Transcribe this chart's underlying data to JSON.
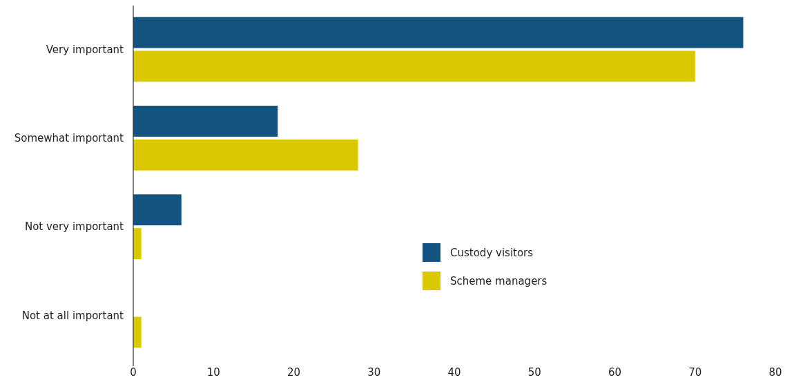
{
  "chart_data": {
    "type": "bar",
    "orientation": "horizontal",
    "categories": [
      "Very important",
      "Somewhat important",
      "Not very important",
      "Not at all important"
    ],
    "series": [
      {
        "name": "Custody visitors",
        "color": "#14527f",
        "values": [
          76,
          18,
          6,
          0
        ]
      },
      {
        "name": "Scheme managers",
        "color": "#dac800",
        "values": [
          70,
          28,
          1,
          1
        ]
      }
    ],
    "xlim": [
      0,
      80
    ],
    "xticks": [
      0,
      10,
      20,
      30,
      40,
      50,
      60,
      70,
      80
    ],
    "grid": false,
    "legend": "right"
  }
}
